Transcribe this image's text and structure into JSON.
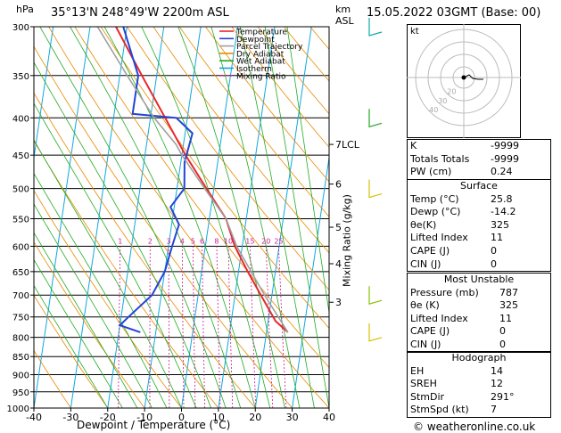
{
  "header": {
    "location": "35°13'N  248°49'W  2200m  ASL",
    "datetime": "15.05.2022  03GMT  (Base: 00)",
    "hpa_label": "hPa",
    "km_label": "km",
    "asl_label": "ASL"
  },
  "xaxis": {
    "label": "Dewpoint / Temperature (°C)",
    "ticks": [
      "-40",
      "-30",
      "-20",
      "-10",
      "0",
      "10",
      "20",
      "30",
      "40"
    ]
  },
  "yaxis": {
    "ticks": [
      "300",
      "350",
      "400",
      "450",
      "500",
      "550",
      "600",
      "650",
      "700",
      "750",
      "800",
      "850",
      "900",
      "950",
      "1000"
    ]
  },
  "km_ticks": [
    {
      "label": "7LCL",
      "p": 435
    },
    {
      "label": "6",
      "p": 493
    },
    {
      "label": "5",
      "p": 565
    },
    {
      "label": "4",
      "p": 634
    },
    {
      "label": "3",
      "p": 716
    }
  ],
  "mixing_ratio_axis_label": "Mixing Ratio (g/kg)",
  "mixing_labels": [
    "1",
    "2",
    "3",
    "4",
    "5",
    "6",
    "8",
    "10",
    "15",
    "20",
    "25"
  ],
  "legend": [
    {
      "label": "Temperature",
      "color": "#e8282a"
    },
    {
      "label": "Dewpoint",
      "color": "#2344d8"
    },
    {
      "label": "Parcel Trajectory",
      "color": "#a0a0a0"
    },
    {
      "label": "Dry Adiabat",
      "color": "#e88a00"
    },
    {
      "label": "Wet Adiabat",
      "color": "#22aa22"
    },
    {
      "label": "Isotherm",
      "color": "#10a8e0"
    },
    {
      "label": "Mixing Ratio",
      "color": "#d01896"
    }
  ],
  "hodograph": {
    "label": "kt",
    "rings": [
      "10",
      "20",
      "30",
      "40"
    ],
    "ring_labels": [
      "20",
      "30",
      "40"
    ]
  },
  "indices": [
    {
      "label": "K",
      "value": "-9999"
    },
    {
      "label": "Totals Totals",
      "value": "-9999"
    },
    {
      "label": "PW (cm)",
      "value": "0.24"
    }
  ],
  "surface": {
    "title": "Surface",
    "rows": [
      {
        "label": "Temp (°C)",
        "value": "25.8"
      },
      {
        "label": "Dewp (°C)",
        "value": "-14.2"
      },
      {
        "label": "θe(K)",
        "value": "325"
      },
      {
        "label": "Lifted Index",
        "value": "11"
      },
      {
        "label": "CAPE (J)",
        "value": "0"
      },
      {
        "label": "CIN (J)",
        "value": "0"
      }
    ]
  },
  "most_unstable": {
    "title": "Most Unstable",
    "rows": [
      {
        "label": "Pressure (mb)",
        "value": "787"
      },
      {
        "label": "θe (K)",
        "value": "325"
      },
      {
        "label": "Lifted Index",
        "value": "11"
      },
      {
        "label": "CAPE (J)",
        "value": "0"
      },
      {
        "label": "CIN (J)",
        "value": "0"
      }
    ]
  },
  "hodograph_table": {
    "title": "Hodograph",
    "rows": [
      {
        "label": "EH",
        "value": "14"
      },
      {
        "label": "SREH",
        "value": "12"
      },
      {
        "label": "StmDir",
        "value": "291°"
      },
      {
        "label": "StmSpd (kt)",
        "value": "7"
      }
    ]
  },
  "credit": "© weatheronline.co.uk",
  "chart_data": {
    "type": "line",
    "title": "35°13'N  248°49'W  2200m  ASL",
    "xlabel": "Dewpoint / Temperature (°C)",
    "ylabel": "hPa",
    "xlim": [
      -40,
      40
    ],
    "ylim": [
      1000,
      300
    ],
    "y_scale": "log",
    "x_ticks": [
      -40,
      -30,
      -20,
      -10,
      0,
      10,
      20,
      30,
      40
    ],
    "y_ticks": [
      300,
      350,
      400,
      450,
      500,
      550,
      600,
      650,
      700,
      750,
      800,
      850,
      900,
      950,
      1000
    ],
    "grid": true,
    "legend_position": "top-left",
    "series": [
      {
        "name": "Temperature",
        "color": "#e8282a",
        "p": [
          787,
          760,
          700,
          650,
          600,
          550,
          500,
          450,
          400,
          350,
          300
        ],
        "t": [
          25.8,
          22.0,
          17.0,
          12.5,
          8.0,
          4.5,
          -2.0,
          -9.0,
          -16.0,
          -24.0,
          -33.0
        ]
      },
      {
        "name": "Dewpoint",
        "color": "#2344d8",
        "p": [
          787,
          770,
          750,
          700,
          650,
          600,
          560,
          530,
          500,
          460,
          420,
          400,
          395,
          350,
          300
        ],
        "t": [
          -14.2,
          -20.0,
          -18.0,
          -12.5,
          -10.0,
          -9.0,
          -8.0,
          -11.0,
          -8.0,
          -9.0,
          -8.0,
          -13.0,
          -25.0,
          -25.0,
          -31.0
        ]
      },
      {
        "name": "Parcel Trajectory",
        "color": "#a0a0a0",
        "p": [
          787,
          700,
          600,
          550,
          500,
          450,
          435,
          400,
          350,
          300
        ],
        "t": [
          25.8,
          18.0,
          8.5,
          4.5,
          -2.5,
          -10.0,
          -12.0,
          -19.0,
          -28.0,
          -38.0
        ]
      }
    ],
    "wind_barbs": [
      {
        "p": 300,
        "color": "#10a8a8"
      },
      {
        "p": 400,
        "color": "#22aa22"
      },
      {
        "p": 500,
        "color": "#d8c000"
      },
      {
        "p": 700,
        "color": "#88c000"
      },
      {
        "p": 787,
        "color": "#d8c000"
      }
    ]
  }
}
